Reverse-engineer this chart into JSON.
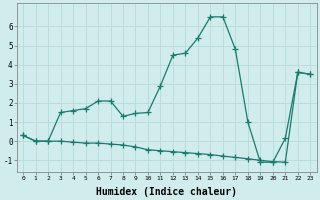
{
  "line1_x": [
    0,
    1,
    2,
    3,
    4,
    5,
    6,
    7,
    8,
    9,
    10,
    11,
    12,
    13,
    14,
    15,
    16,
    17,
    18,
    19,
    20,
    21,
    22,
    23
  ],
  "line1_y": [
    0.3,
    0.0,
    0.0,
    1.5,
    1.6,
    1.7,
    2.1,
    2.1,
    1.3,
    1.45,
    1.5,
    2.9,
    4.5,
    4.6,
    5.4,
    6.5,
    6.5,
    4.8,
    1.0,
    -1.1,
    -1.1,
    0.15,
    3.6,
    3.5
  ],
  "line2_x": [
    0,
    1,
    2,
    3,
    4,
    5,
    6,
    7,
    8,
    9,
    10,
    11,
    12,
    13,
    14,
    15,
    16,
    17,
    18,
    19,
    20,
    21,
    22,
    23
  ],
  "line2_y": [
    0.3,
    0.0,
    0.0,
    0.0,
    -0.05,
    -0.1,
    -0.1,
    -0.15,
    -0.2,
    -0.3,
    -0.45,
    -0.5,
    -0.55,
    -0.6,
    -0.65,
    -0.7,
    -0.78,
    -0.85,
    -0.92,
    -1.0,
    -1.07,
    -1.1,
    3.6,
    3.5
  ],
  "line_color": "#1a7a6e",
  "bg_color": "#d0ecec",
  "grid_color": "#b8dada",
  "xlabel": "Humidex (Indice chaleur)",
  "xlabel_fontsize": 7,
  "ylabel_ticks": [
    -1,
    0,
    1,
    2,
    3,
    4,
    5,
    6
  ],
  "xlim": [
    -0.5,
    23.5
  ],
  "ylim": [
    -1.6,
    7.2
  ],
  "xticks": [
    0,
    1,
    2,
    3,
    4,
    5,
    6,
    7,
    8,
    9,
    10,
    11,
    12,
    13,
    14,
    15,
    16,
    17,
    18,
    19,
    20,
    21,
    22,
    23
  ],
  "marker": "+",
  "markersize": 4,
  "markeredgewidth": 0.9,
  "linewidth": 0.9
}
